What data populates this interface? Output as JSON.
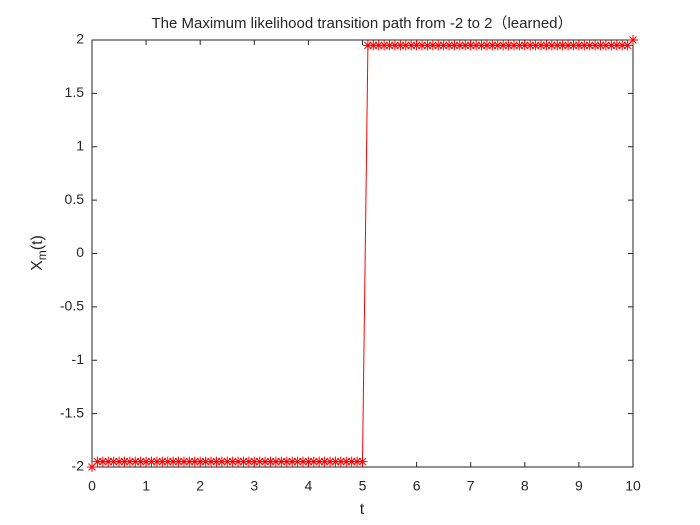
{
  "chart_data": {
    "type": "line",
    "title": "The Maximum likelihood transition path from -2 to 2（learned）",
    "xlabel": "t",
    "ylabel": [
      "X",
      "m",
      "(t)"
    ],
    "x": [
      0,
      0.1,
      0.2,
      0.3,
      0.4,
      0.5,
      0.6,
      0.7,
      0.8,
      0.9,
      1,
      1.1,
      1.2,
      1.3,
      1.4,
      1.5,
      1.6,
      1.7,
      1.8,
      1.9,
      2,
      2.1,
      2.2,
      2.3,
      2.4,
      2.5,
      2.6,
      2.7,
      2.8,
      2.9,
      3,
      3.1,
      3.2,
      3.3,
      3.4,
      3.5,
      3.6,
      3.7,
      3.8,
      3.9,
      4,
      4.1,
      4.2,
      4.3,
      4.4,
      4.5,
      4.6,
      4.7,
      4.8,
      4.9,
      5,
      5.1,
      5.2,
      5.3,
      5.4,
      5.5,
      5.6,
      5.7,
      5.8,
      5.9,
      6,
      6.1,
      6.2,
      6.3,
      6.4,
      6.5,
      6.6,
      6.7,
      6.8,
      6.9,
      7,
      7.1,
      7.2,
      7.3,
      7.4,
      7.5,
      7.6,
      7.7,
      7.8,
      7.9,
      8,
      8.1,
      8.2,
      8.3,
      8.4,
      8.5,
      8.6,
      8.7,
      8.8,
      8.9,
      9,
      9.1,
      9.2,
      9.3,
      9.4,
      9.5,
      9.6,
      9.7,
      9.8,
      9.9,
      10
    ],
    "series": [
      {
        "color": "#ff0000",
        "marker": "star",
        "values": [
          -2,
          -1.95,
          -1.95,
          -1.95,
          -1.95,
          -1.95,
          -1.95,
          -1.95,
          -1.95,
          -1.95,
          -1.95,
          -1.95,
          -1.95,
          -1.95,
          -1.95,
          -1.95,
          -1.95,
          -1.95,
          -1.95,
          -1.95,
          -1.95,
          -1.95,
          -1.95,
          -1.95,
          -1.95,
          -1.95,
          -1.95,
          -1.95,
          -1.95,
          -1.95,
          -1.95,
          -1.95,
          -1.95,
          -1.95,
          -1.95,
          -1.95,
          -1.95,
          -1.95,
          -1.95,
          -1.95,
          -1.95,
          -1.95,
          -1.95,
          -1.95,
          -1.95,
          -1.95,
          -1.95,
          -1.95,
          -1.95,
          -1.95,
          -1.95,
          1.95,
          1.95,
          1.95,
          1.95,
          1.95,
          1.95,
          1.95,
          1.95,
          1.95,
          1.95,
          1.95,
          1.95,
          1.95,
          1.95,
          1.95,
          1.95,
          1.95,
          1.95,
          1.95,
          1.95,
          1.95,
          1.95,
          1.95,
          1.95,
          1.95,
          1.95,
          1.95,
          1.95,
          1.95,
          1.95,
          1.95,
          1.95,
          1.95,
          1.95,
          1.95,
          1.95,
          1.95,
          1.95,
          1.95,
          1.95,
          1.95,
          1.95,
          1.95,
          1.95,
          1.95,
          1.95,
          1.95,
          1.95,
          1.95,
          2
        ]
      }
    ],
    "xlim": [
      0,
      10
    ],
    "xticks": [
      0,
      1,
      2,
      3,
      4,
      5,
      6,
      7,
      8,
      9,
      10
    ],
    "ylim": [
      -2,
      2
    ],
    "yticks": [
      -2,
      -1.5,
      -1,
      -0.5,
      0,
      0.5,
      1,
      1.5,
      2
    ]
  }
}
